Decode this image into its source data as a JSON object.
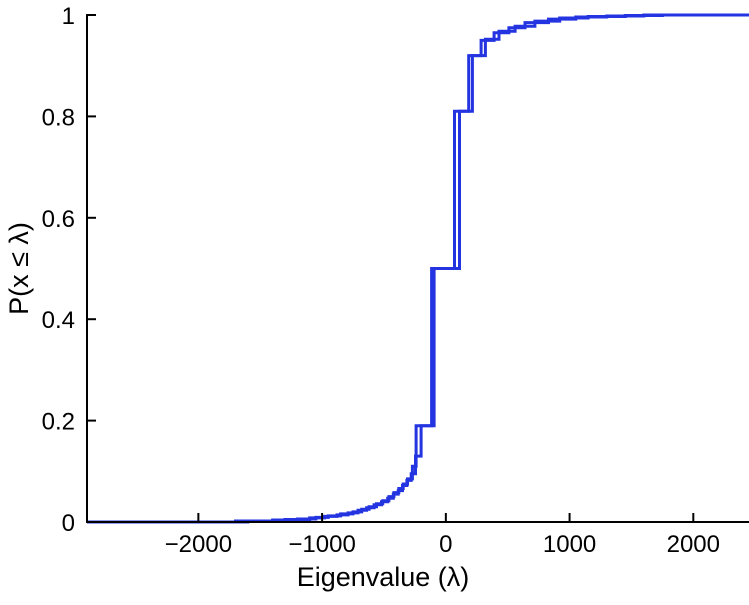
{
  "figure": {
    "background": "#ffffff",
    "line_color": "#2334e0",
    "axis_color": "#000000"
  },
  "chart_data": {
    "type": "line",
    "subtype": "step-cdf",
    "title": "",
    "xlabel": "Eigenvalue (λ)",
    "ylabel": "P(x ≤ λ)",
    "xlim": [
      -2900,
      2450
    ],
    "ylim": [
      0,
      1
    ],
    "grid": false,
    "legend": "none",
    "x_ticks": [
      {
        "value": -2000,
        "label": "−2000"
      },
      {
        "value": -1000,
        "label": "−1000"
      },
      {
        "value": 0,
        "label": "0"
      },
      {
        "value": 1000,
        "label": "1000"
      },
      {
        "value": 2000,
        "label": "2000"
      }
    ],
    "y_ticks": [
      {
        "value": 0,
        "label": "0"
      },
      {
        "value": 0.2,
        "label": "0.2"
      },
      {
        "value": 0.4,
        "label": "0.4"
      },
      {
        "value": 0.6,
        "label": "0.6"
      },
      {
        "value": 0.8,
        "label": "0.8"
      },
      {
        "value": 1,
        "label": "1"
      }
    ],
    "series": [
      {
        "name": "empirical-cdf-1",
        "color": "#2334e0",
        "points": [
          [
            -2900,
            0
          ],
          [
            -1700,
            0.002
          ],
          [
            -1400,
            0.004
          ],
          [
            -1200,
            0.006
          ],
          [
            -1050,
            0.009
          ],
          [
            -950,
            0.012
          ],
          [
            -850,
            0.016
          ],
          [
            -750,
            0.02
          ],
          [
            -680,
            0.025
          ],
          [
            -620,
            0.03
          ],
          [
            -560,
            0.036
          ],
          [
            -510,
            0.042
          ],
          [
            -460,
            0.05
          ],
          [
            -420,
            0.058
          ],
          [
            -380,
            0.066
          ],
          [
            -345,
            0.075
          ],
          [
            -310,
            0.085
          ],
          [
            -270,
            0.11
          ],
          [
            -240,
            0.19
          ],
          [
            -115,
            0.5
          ],
          [
            70,
            0.81
          ],
          [
            185,
            0.92
          ],
          [
            285,
            0.95
          ],
          [
            390,
            0.965
          ],
          [
            510,
            0.975
          ],
          [
            640,
            0.985
          ],
          [
            830,
            0.992
          ],
          [
            1050,
            0.996
          ],
          [
            1300,
            0.998
          ],
          [
            1600,
            1.0
          ],
          [
            2450,
            1.0
          ]
        ]
      },
      {
        "name": "empirical-cdf-2",
        "color": "#2334e0",
        "points": [
          [
            -2900,
            0
          ],
          [
            -1600,
            0.002
          ],
          [
            -1300,
            0.005
          ],
          [
            -1100,
            0.008
          ],
          [
            -980,
            0.011
          ],
          [
            -880,
            0.014
          ],
          [
            -790,
            0.018
          ],
          [
            -710,
            0.023
          ],
          [
            -640,
            0.028
          ],
          [
            -580,
            0.034
          ],
          [
            -520,
            0.04
          ],
          [
            -470,
            0.047
          ],
          [
            -425,
            0.055
          ],
          [
            -385,
            0.062
          ],
          [
            -350,
            0.072
          ],
          [
            -315,
            0.082
          ],
          [
            -280,
            0.095
          ],
          [
            -245,
            0.13
          ],
          [
            -200,
            0.19
          ],
          [
            -95,
            0.5
          ],
          [
            110,
            0.81
          ],
          [
            215,
            0.92
          ],
          [
            320,
            0.952
          ],
          [
            430,
            0.968
          ],
          [
            560,
            0.978
          ],
          [
            720,
            0.988
          ],
          [
            920,
            0.994
          ],
          [
            1150,
            0.997
          ],
          [
            1450,
            0.999
          ],
          [
            1750,
            1.0
          ],
          [
            2450,
            1.0
          ]
        ]
      }
    ]
  }
}
